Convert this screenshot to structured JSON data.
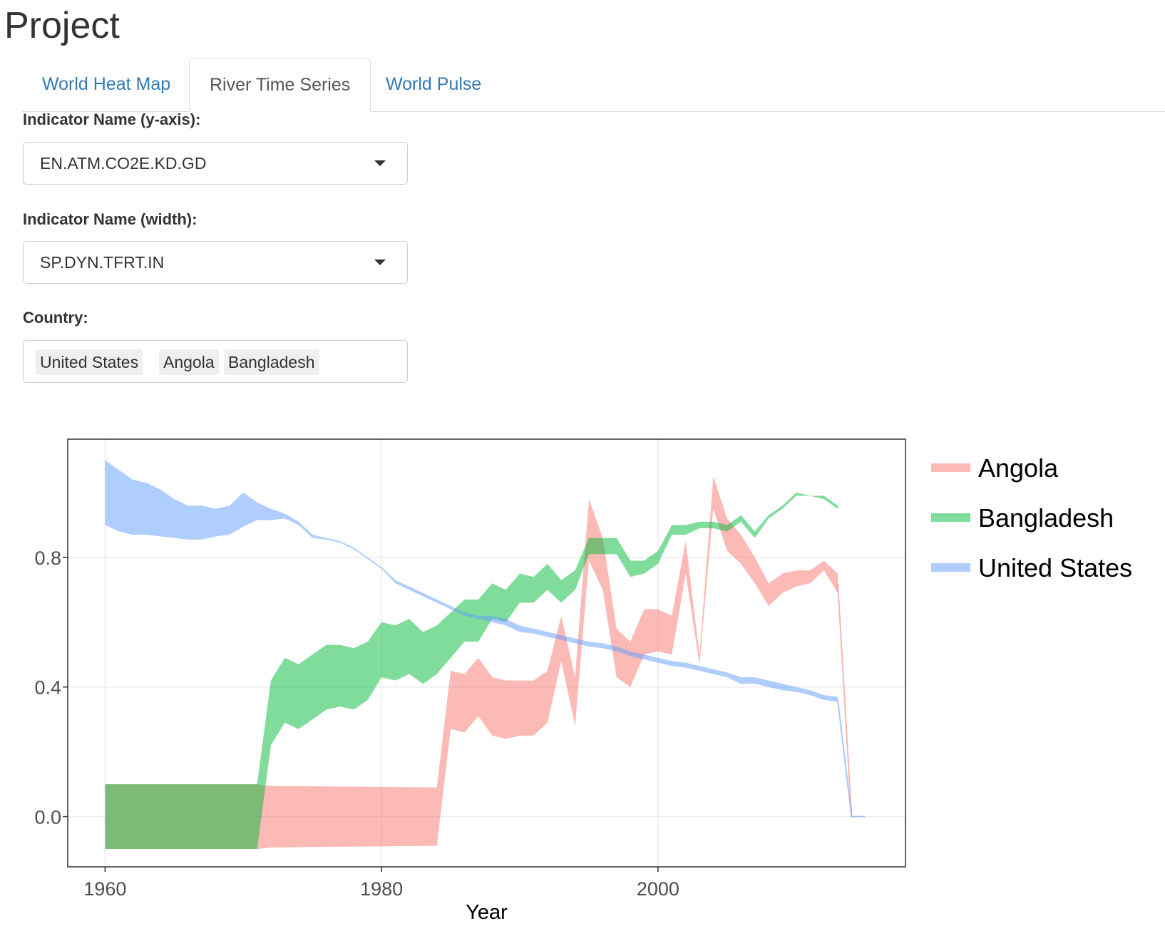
{
  "header": {
    "title": "Project"
  },
  "tabs": [
    {
      "label": "World Heat Map",
      "active": false
    },
    {
      "label": "River Time Series",
      "active": true
    },
    {
      "label": "World Pulse",
      "active": false
    }
  ],
  "form": {
    "y_indicator": {
      "label": "Indicator Name (y-axis):",
      "value": "EN.ATM.CO2E.KD.GD"
    },
    "width_indicator": {
      "label": "Indicator Name (width):",
      "value": "SP.DYN.TFRT.IN"
    },
    "country": {
      "label": "Country:",
      "selected": [
        "United States",
        "Angola",
        "Bangladesh"
      ]
    }
  },
  "colors": {
    "Angola": "#f8766d",
    "Bangladesh": "#00ba38",
    "United States": "#619cff",
    "link": "#337ab7"
  },
  "chart_data": {
    "type": "area",
    "title": "",
    "xlabel": "Year",
    "ylabel": "",
    "xlim": [
      1957.3,
      2017.9
    ],
    "ylim": [
      -0.155,
      1.165
    ],
    "xticks": [
      1960,
      1980,
      2000
    ],
    "yticks": [
      0.0,
      0.4,
      0.8
    ],
    "ytick_labels": [
      "0.0",
      "0.4",
      "0.8"
    ],
    "grid": true,
    "legend_position": "right",
    "legend": [
      "Angola",
      "Bangladesh",
      "United States"
    ],
    "series": [
      {
        "name": "Angola",
        "color": "#f8766d",
        "x": [
          1960,
          1971,
          1972,
          1984,
          1985,
          1986,
          1987,
          1988,
          1989,
          1990,
          1991,
          1992,
          1993,
          1994,
          1995,
          1996,
          1997,
          1998,
          1999,
          2000,
          2001,
          2002,
          2003,
          2004,
          2005,
          2006,
          2007,
          2008,
          2009,
          2010,
          2011,
          2012,
          2013
        ],
        "upper": [
          0.1,
          0.1,
          0.095,
          0.09,
          0.45,
          0.44,
          0.49,
          0.43,
          0.42,
          0.42,
          0.42,
          0.45,
          0.62,
          0.43,
          0.98,
          0.86,
          0.58,
          0.54,
          0.64,
          0.64,
          0.62,
          0.85,
          0.5,
          1.05,
          0.92,
          0.87,
          0.8,
          0.72,
          0.75,
          0.76,
          0.76,
          0.79,
          0.75
        ],
        "lower": [
          -0.1,
          -0.1,
          -0.095,
          -0.09,
          0.27,
          0.26,
          0.31,
          0.25,
          0.24,
          0.25,
          0.25,
          0.29,
          0.48,
          0.28,
          0.79,
          0.7,
          0.43,
          0.4,
          0.5,
          0.51,
          0.5,
          0.75,
          0.47,
          0.95,
          0.82,
          0.78,
          0.72,
          0.65,
          0.69,
          0.71,
          0.72,
          0.76,
          0.69
        ],
        "tail": {
          "x": [
            2013,
            2014
          ],
          "y": [
            0.72,
            0.0
          ]
        }
      },
      {
        "name": "Bangladesh",
        "color": "#00ba38",
        "x": [
          1960,
          1971,
          1972,
          1973,
          1974,
          1975,
          1976,
          1977,
          1978,
          1979,
          1980,
          1981,
          1982,
          1983,
          1984,
          1985,
          1986,
          1987,
          1988,
          1989,
          1990,
          1991,
          1992,
          1993,
          1994,
          1995,
          1996,
          1997,
          1998,
          1999,
          2000,
          2001,
          2002,
          2003,
          2004,
          2005,
          2006,
          2007,
          2008,
          2009,
          2010,
          2011,
          2012,
          2013
        ],
        "upper": [
          0.1,
          0.1,
          0.42,
          0.49,
          0.47,
          0.5,
          0.53,
          0.53,
          0.52,
          0.54,
          0.6,
          0.59,
          0.61,
          0.57,
          0.59,
          0.63,
          0.67,
          0.67,
          0.72,
          0.7,
          0.75,
          0.74,
          0.78,
          0.73,
          0.76,
          0.86,
          0.86,
          0.86,
          0.79,
          0.79,
          0.82,
          0.9,
          0.9,
          0.91,
          0.91,
          0.9,
          0.93,
          0.88,
          0.93,
          0.96,
          1.0,
          0.99,
          0.99,
          0.96
        ],
        "lower": [
          -0.1,
          -0.1,
          0.22,
          0.29,
          0.27,
          0.3,
          0.33,
          0.34,
          0.33,
          0.36,
          0.43,
          0.42,
          0.44,
          0.41,
          0.44,
          0.49,
          0.54,
          0.54,
          0.61,
          0.6,
          0.66,
          0.66,
          0.7,
          0.66,
          0.7,
          0.81,
          0.81,
          0.81,
          0.74,
          0.75,
          0.78,
          0.87,
          0.87,
          0.89,
          0.89,
          0.88,
          0.91,
          0.86,
          0.92,
          0.95,
          0.99,
          0.99,
          0.98,
          0.95
        ]
      },
      {
        "name": "United States",
        "color": "#619cff",
        "x": [
          1960,
          1961,
          1962,
          1963,
          1964,
          1965,
          1966,
          1967,
          1968,
          1969,
          1970,
          1971,
          1972,
          1973,
          1974,
          1975,
          1976,
          1977,
          1978,
          1979,
          1980,
          1981,
          1982,
          1983,
          1984,
          1985,
          1986,
          1987,
          1988,
          1989,
          1990,
          1991,
          1992,
          1993,
          1994,
          1995,
          1996,
          1997,
          1998,
          1999,
          2000,
          2001,
          2002,
          2003,
          2004,
          2005,
          2006,
          2007,
          2008,
          2009,
          2010,
          2011,
          2012,
          2013
        ],
        "upper": [
          1.1,
          1.07,
          1.04,
          1.03,
          1.01,
          0.98,
          0.96,
          0.96,
          0.95,
          0.96,
          1.0,
          0.97,
          0.95,
          0.935,
          0.91,
          0.87,
          0.86,
          0.85,
          0.83,
          0.8,
          0.77,
          0.73,
          0.71,
          0.69,
          0.67,
          0.65,
          0.63,
          0.62,
          0.62,
          0.61,
          0.59,
          0.58,
          0.57,
          0.56,
          0.55,
          0.54,
          0.535,
          0.525,
          0.51,
          0.5,
          0.49,
          0.48,
          0.475,
          0.465,
          0.455,
          0.445,
          0.43,
          0.43,
          0.42,
          0.41,
          0.4,
          0.39,
          0.375,
          0.37
        ],
        "lower": [
          0.9,
          0.88,
          0.87,
          0.87,
          0.865,
          0.86,
          0.855,
          0.855,
          0.865,
          0.87,
          0.895,
          0.915,
          0.915,
          0.92,
          0.9,
          0.86,
          0.855,
          0.845,
          0.825,
          0.795,
          0.765,
          0.72,
          0.7,
          0.68,
          0.66,
          0.64,
          0.62,
          0.61,
          0.6,
          0.59,
          0.57,
          0.565,
          0.555,
          0.545,
          0.535,
          0.525,
          0.52,
          0.51,
          0.495,
          0.485,
          0.475,
          0.465,
          0.46,
          0.45,
          0.44,
          0.43,
          0.41,
          0.41,
          0.4,
          0.39,
          0.385,
          0.375,
          0.36,
          0.355
        ],
        "tail": {
          "x": [
            2013,
            2014,
            2015
          ],
          "y": [
            0.36,
            0.0,
            0.0
          ]
        }
      }
    ]
  }
}
